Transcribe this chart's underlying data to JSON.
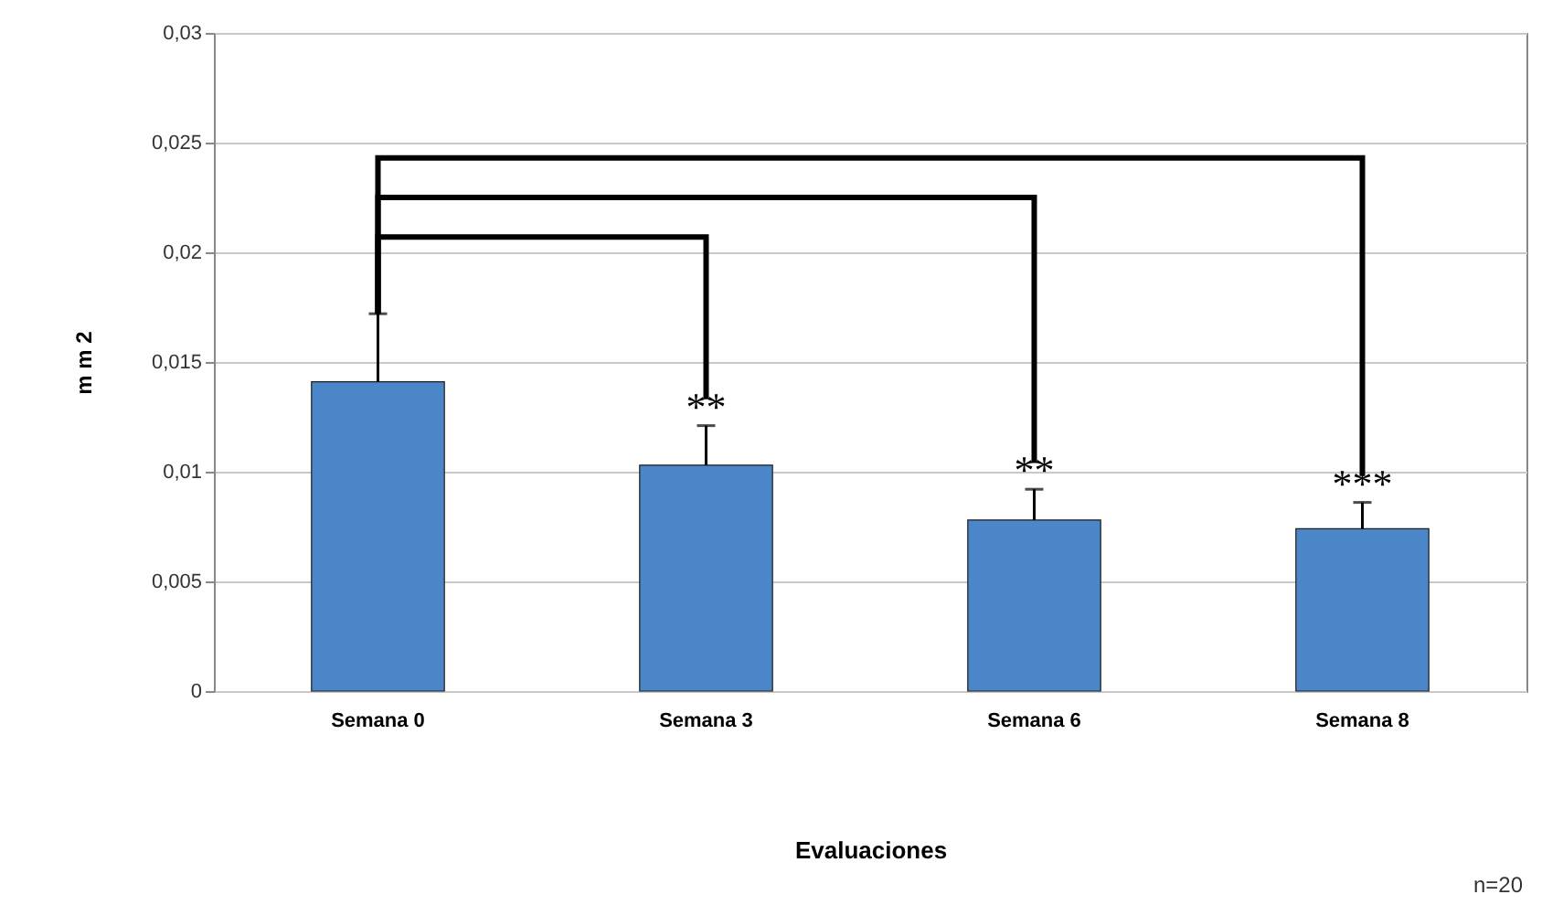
{
  "chart_data": {
    "type": "bar",
    "xlabel": "Evaluaciones",
    "ylabel": "m m 2",
    "categories": [
      "Semana 0",
      "Semana 3",
      "Semana 6",
      "Semana 8"
    ],
    "values": [
      0.0141,
      0.0103,
      0.0078,
      0.0074
    ],
    "color": "#4a86c8",
    "errors": [
      [
        0.0141,
        0.0172
      ],
      [
        0.0103,
        0.0121
      ],
      [
        0.0078,
        0.0092
      ],
      [
        0.0074,
        0.0086
      ]
    ],
    "ylim": [
      0,
      0.03
    ],
    "yticks": [
      0,
      {
        "value": 0.005,
        "label": "0,005"
      },
      {
        "value": 0.01,
        "label": "0,01"
      },
      {
        "value": 0.015,
        "label": "0,015"
      },
      {
        "value": 0.02,
        "label": "0,02"
      },
      {
        "value": 0.025,
        "label": "0,025"
      },
      {
        "value": 0.03,
        "label": "0,03"
      }
    ],
    "grid": "y",
    "annotations": [
      {
        "text": "**",
        "x": "Semana 3",
        "y": 0.0121
      },
      {
        "text": "**",
        "x": "Semana 6",
        "y": 0.0092
      },
      {
        "text": "***",
        "x": "Semana 8",
        "y": 0.0086
      },
      "n=20"
    ]
  }
}
